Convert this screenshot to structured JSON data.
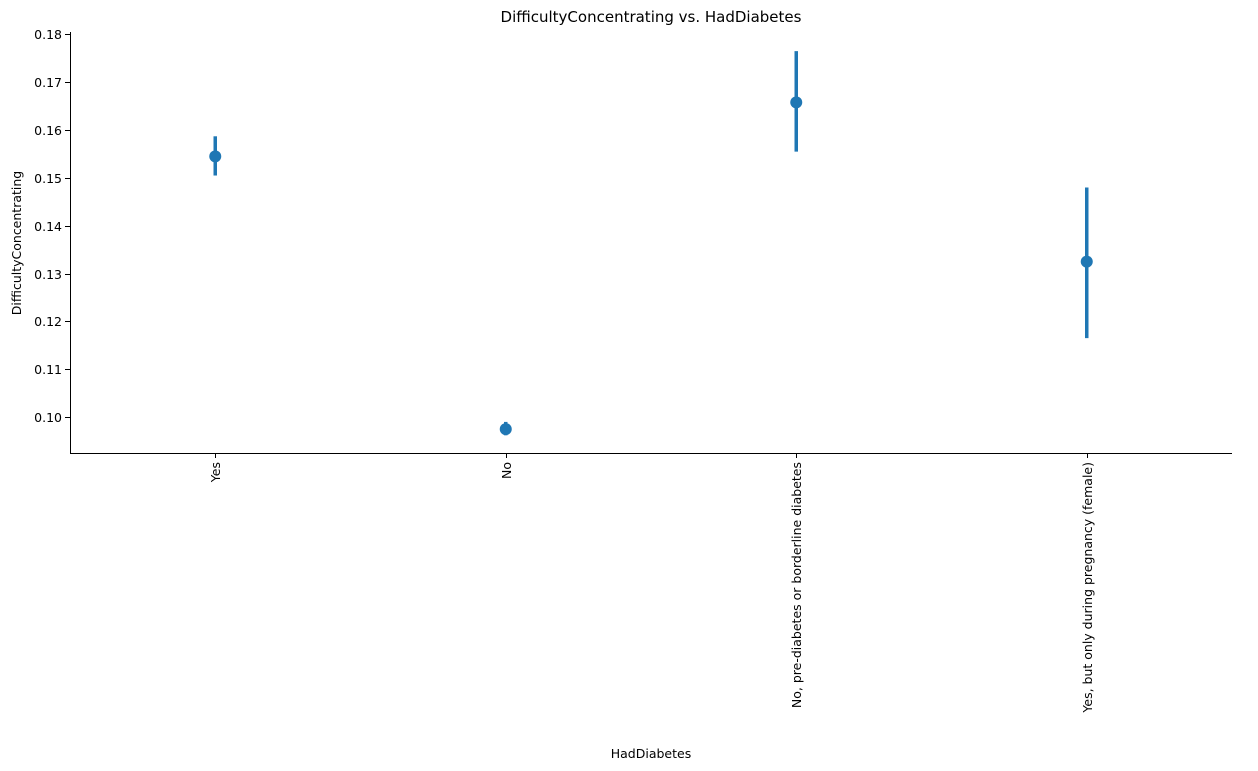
{
  "chart_data": {
    "type": "scatter",
    "title": "DifficultyConcentrating vs. HadDiabetes",
    "xlabel": "HadDiabetes",
    "ylabel": "DifficultyConcentrating",
    "categories": [
      "Yes",
      "No",
      "No, pre-diabetes or borderline diabetes",
      "Yes, but only during pregnancy (female)"
    ],
    "values": [
      0.1545,
      0.0975,
      0.1658,
      0.1325
    ],
    "ci_lower": [
      0.1505,
      0.0962,
      0.1555,
      0.1165
    ],
    "ci_upper": [
      0.1587,
      0.099,
      0.1765,
      0.148
    ],
    "ylim": [
      0.0925,
      0.1805
    ],
    "yticks": [
      0.1,
      0.11,
      0.12,
      0.13,
      0.14,
      0.15,
      0.16,
      0.17,
      0.18
    ],
    "ytick_labels": [
      "0.10",
      "0.11",
      "0.12",
      "0.13",
      "0.14",
      "0.15",
      "0.16",
      "0.17",
      "0.18"
    ],
    "grid": false,
    "color": "#1f77b4"
  }
}
